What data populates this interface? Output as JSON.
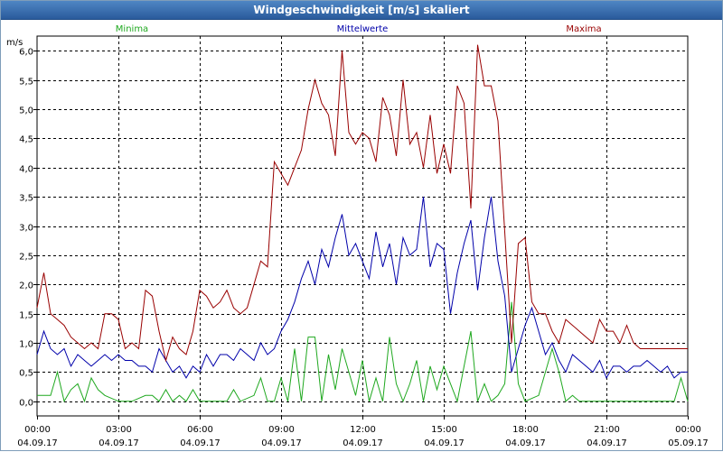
{
  "window": {
    "title": "Windgeschwindigkeit [m/s] skaliert"
  },
  "colors": {
    "minima": "#1fa81f",
    "mittelwerte": "#0000aa",
    "maxima": "#990000",
    "grid": "#000000",
    "titlebar": "#3a6fb0"
  },
  "chart_data": {
    "type": "line",
    "title": "Windgeschwindigkeit [m/s] skaliert",
    "ylabel": "m/s",
    "xlabel": "",
    "ylim": [
      -0.25,
      6.25
    ],
    "y_ticks": [
      "0,0",
      "0,5",
      "1,0",
      "1,5",
      "2,0",
      "2,5",
      "3,0",
      "3,5",
      "4,0",
      "4,5",
      "5,0",
      "5,5",
      "6,0"
    ],
    "x_ticks": [
      {
        "time": "00:00",
        "date": "04.09.17"
      },
      {
        "time": "03:00",
        "date": "04.09.17"
      },
      {
        "time": "06:00",
        "date": "04.09.17"
      },
      {
        "time": "09:00",
        "date": "04.09.17"
      },
      {
        "time": "12:00",
        "date": "04.09.17"
      },
      {
        "time": "15:00",
        "date": "04.09.17"
      },
      {
        "time": "18:00",
        "date": "04.09.17"
      },
      {
        "time": "21:00",
        "date": "04.09.17"
      },
      {
        "time": "00:00",
        "date": "05.09.17"
      }
    ],
    "x_range_hours": [
      0,
      24
    ],
    "series": [
      {
        "name": "Minima",
        "x": [
          0,
          0.5,
          0.75,
          1,
          1.25,
          1.5,
          1.75,
          2,
          2.25,
          2.5,
          3,
          3.5,
          4,
          4.25,
          4.5,
          4.75,
          5,
          5.25,
          5.5,
          5.75,
          6,
          6.5,
          7,
          7.25,
          7.5,
          8,
          8.25,
          8.5,
          8.75,
          9,
          9.25,
          9.5,
          9.75,
          10,
          10.25,
          10.5,
          10.75,
          11,
          11.25,
          11.5,
          11.75,
          12,
          12.25,
          12.5,
          12.75,
          13,
          13.25,
          13.5,
          13.75,
          14,
          14.25,
          14.5,
          14.75,
          15,
          15.25,
          15.5,
          15.75,
          16,
          16.25,
          16.5,
          16.75,
          17,
          17.25,
          17.5,
          17.75,
          18,
          18.5,
          18.75,
          19,
          19.25,
          19.5,
          19.75,
          20,
          20.5,
          21,
          22,
          23,
          23.5,
          23.75,
          24
        ],
        "values": [
          0.1,
          0.1,
          0.5,
          0.0,
          0.2,
          0.3,
          0.0,
          0.4,
          0.2,
          0.1,
          0.0,
          0.0,
          0.1,
          0.1,
          0.0,
          0.2,
          0.0,
          0.1,
          0.0,
          0.2,
          0.0,
          0.0,
          0.0,
          0.2,
          0.0,
          0.1,
          0.4,
          0.0,
          0.0,
          0.4,
          0.0,
          0.9,
          0.0,
          1.1,
          1.1,
          0.0,
          0.8,
          0.2,
          0.9,
          0.5,
          0.1,
          0.7,
          0.0,
          0.4,
          0.0,
          1.1,
          0.3,
          0.0,
          0.3,
          0.7,
          0.0,
          0.6,
          0.2,
          0.6,
          0.3,
          0.0,
          0.6,
          1.2,
          0.0,
          0.3,
          0.0,
          0.1,
          0.3,
          1.7,
          0.3,
          0.0,
          0.1,
          0.5,
          0.9,
          0.5,
          0.0,
          0.1,
          0.0,
          0.0,
          0.0,
          0.0,
          0.0,
          0.0,
          0.4,
          0.0
        ]
      },
      {
        "name": "Mittelwerte",
        "x": [
          0,
          0.25,
          0.5,
          0.75,
          1,
          1.25,
          1.5,
          1.75,
          2,
          2.25,
          2.5,
          2.75,
          3,
          3.25,
          3.5,
          3.75,
          4,
          4.25,
          4.5,
          4.75,
          5,
          5.25,
          5.5,
          5.75,
          6,
          6.25,
          6.5,
          6.75,
          7,
          7.25,
          7.5,
          7.75,
          8,
          8.25,
          8.5,
          8.75,
          9,
          9.25,
          9.5,
          9.75,
          10,
          10.25,
          10.5,
          10.75,
          11,
          11.25,
          11.5,
          11.75,
          12,
          12.25,
          12.5,
          12.75,
          13,
          13.25,
          13.5,
          13.75,
          14,
          14.25,
          14.5,
          14.75,
          15,
          15.25,
          15.5,
          15.75,
          16,
          16.25,
          16.5,
          16.75,
          17,
          17.25,
          17.5,
          17.75,
          18,
          18.25,
          18.5,
          18.75,
          19,
          19.25,
          19.5,
          19.75,
          20,
          20.25,
          20.5,
          20.75,
          21,
          21.25,
          21.5,
          21.75,
          22,
          22.25,
          22.5,
          22.75,
          23,
          23.25,
          23.5,
          23.75,
          24
        ],
        "values": [
          0.8,
          1.2,
          0.9,
          0.8,
          0.9,
          0.6,
          0.8,
          0.7,
          0.6,
          0.7,
          0.8,
          0.7,
          0.8,
          0.7,
          0.7,
          0.6,
          0.6,
          0.5,
          0.9,
          0.7,
          0.5,
          0.6,
          0.4,
          0.6,
          0.5,
          0.8,
          0.6,
          0.8,
          0.8,
          0.7,
          0.9,
          0.8,
          0.7,
          1.0,
          0.8,
          0.9,
          1.2,
          1.4,
          1.7,
          2.1,
          2.4,
          2.0,
          2.6,
          2.3,
          2.8,
          3.2,
          2.5,
          2.7,
          2.4,
          2.1,
          2.9,
          2.3,
          2.7,
          2.0,
          2.8,
          2.5,
          2.6,
          3.5,
          2.3,
          2.7,
          2.6,
          1.5,
          2.2,
          2.7,
          3.1,
          1.9,
          2.8,
          3.5,
          2.4,
          1.8,
          0.5,
          0.9,
          1.3,
          1.6,
          1.2,
          0.8,
          1.0,
          0.7,
          0.5,
          0.8,
          0.7,
          0.6,
          0.5,
          0.7,
          0.4,
          0.6,
          0.6,
          0.5,
          0.6,
          0.6,
          0.7,
          0.6,
          0.5,
          0.6,
          0.4,
          0.5,
          0.5
        ]
      },
      {
        "name": "Maxima",
        "x": [
          0,
          0.25,
          0.5,
          0.75,
          1,
          1.25,
          1.5,
          1.75,
          2,
          2.25,
          2.5,
          2.75,
          3,
          3.25,
          3.5,
          3.75,
          4,
          4.25,
          4.5,
          4.75,
          5,
          5.25,
          5.5,
          5.75,
          6,
          6.25,
          6.5,
          6.75,
          7,
          7.25,
          7.5,
          7.75,
          8,
          8.25,
          8.5,
          8.75,
          9,
          9.25,
          9.5,
          9.75,
          10,
          10.25,
          10.5,
          10.75,
          11,
          11.25,
          11.5,
          11.75,
          12,
          12.25,
          12.5,
          12.75,
          13,
          13.25,
          13.5,
          13.75,
          14,
          14.25,
          14.5,
          14.75,
          15,
          15.25,
          15.5,
          15.75,
          16,
          16.25,
          16.5,
          16.75,
          17,
          17.25,
          17.5,
          17.75,
          18,
          18.25,
          18.5,
          18.75,
          19,
          19.25,
          19.5,
          19.75,
          20,
          20.25,
          20.5,
          20.75,
          21,
          21.25,
          21.5,
          21.75,
          22,
          22.25,
          22.5,
          22.75,
          23,
          23.25,
          23.5,
          23.75,
          24
        ],
        "values": [
          1.6,
          2.2,
          1.5,
          1.4,
          1.3,
          1.1,
          1.0,
          0.9,
          1.0,
          0.9,
          1.5,
          1.5,
          1.4,
          0.9,
          1.0,
          0.9,
          1.9,
          1.8,
          1.2,
          0.7,
          1.1,
          0.9,
          0.8,
          1.2,
          1.9,
          1.8,
          1.6,
          1.7,
          1.9,
          1.6,
          1.5,
          1.6,
          2.0,
          2.4,
          2.3,
          4.1,
          3.9,
          3.7,
          4.0,
          4.3,
          5.0,
          5.5,
          5.1,
          4.9,
          4.2,
          6.0,
          4.6,
          4.4,
          4.6,
          4.5,
          4.1,
          5.2,
          4.9,
          4.2,
          5.5,
          4.4,
          4.6,
          4.0,
          4.9,
          3.9,
          4.4,
          3.9,
          5.4,
          5.1,
          3.3,
          6.1,
          5.4,
          5.4,
          4.8,
          2.9,
          1.0,
          2.7,
          2.8,
          1.7,
          1.5,
          1.5,
          1.2,
          1.0,
          1.4,
          1.3,
          1.2,
          1.1,
          1.0,
          1.4,
          1.2,
          1.2,
          1.0,
          1.3,
          1.0,
          0.9,
          0.9,
          0.9,
          0.9,
          0.9,
          0.9,
          0.9,
          0.9
        ]
      }
    ]
  }
}
